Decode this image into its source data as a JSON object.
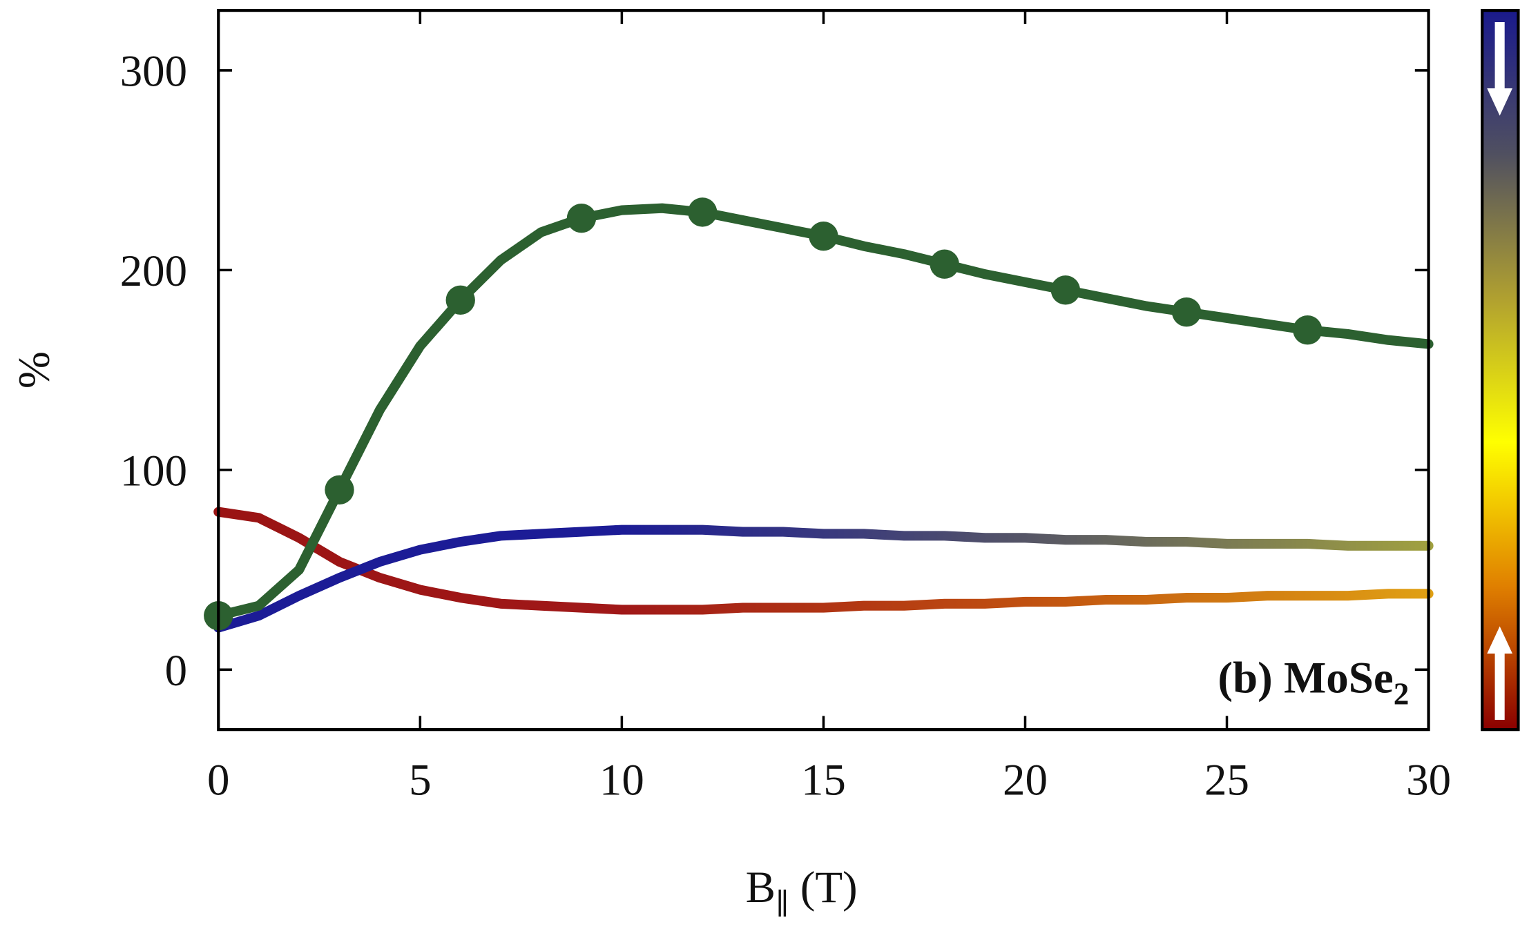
{
  "chart_data": {
    "type": "line",
    "xlabel": {
      "main": "B",
      "sub": "∥",
      "tail": " (T)"
    },
    "ylabel": "%",
    "annotation": {
      "text": "(b) MoSe",
      "sub": "2"
    },
    "xlim": [
      0,
      30
    ],
    "xticks": [
      0,
      5,
      10,
      15,
      20,
      25,
      30
    ],
    "ylim": [
      -30,
      330
    ],
    "yticks": [
      0,
      100,
      200,
      300
    ],
    "x": [
      0,
      1,
      2,
      3,
      4,
      5,
      6,
      7,
      8,
      9,
      10,
      11,
      12,
      13,
      14,
      15,
      16,
      17,
      18,
      19,
      20,
      21,
      22,
      23,
      24,
      25,
      26,
      27,
      28,
      29,
      30
    ],
    "series": [
      {
        "color": "#2c6030",
        "values": [
          27,
          32,
          50,
          90,
          130,
          162,
          185,
          205,
          219,
          226,
          230,
          231,
          229,
          225,
          221,
          217,
          212,
          208,
          203,
          198,
          194,
          190,
          186,
          182,
          179,
          176,
          173,
          170,
          168,
          165,
          163
        ]
      },
      {
        "color_stops": [
          "#1c1c96",
          "#1c1c96",
          "#555566",
          "#a0a040"
        ],
        "values": [
          21,
          27,
          37,
          46,
          54,
          60,
          64,
          67,
          68,
          69,
          70,
          70,
          70,
          69,
          69,
          68,
          68,
          67,
          67,
          66,
          66,
          65,
          65,
          64,
          64,
          63,
          63,
          63,
          62,
          62,
          62
        ]
      },
      {
        "color_stops": [
          "#9a1414",
          "#a01818",
          "#c05010",
          "#e0a014"
        ],
        "values": [
          79,
          76,
          66,
          54,
          46,
          40,
          36,
          33,
          32,
          31,
          30,
          30,
          30,
          31,
          31,
          31,
          32,
          32,
          33,
          33,
          34,
          34,
          35,
          35,
          36,
          36,
          37,
          37,
          37,
          38,
          38
        ]
      }
    ],
    "points": {
      "color": "#2c6030",
      "x": [
        0,
        3,
        6,
        9,
        12,
        15,
        18,
        21,
        24,
        27
      ],
      "values": [
        27,
        90,
        185,
        226,
        229,
        217,
        203,
        190,
        179,
        170
      ]
    },
    "colorbar": [
      "#1a1a8c",
      "#505060",
      "#b0a030",
      "#ffff00",
      "#e08000",
      "#8b0000"
    ]
  }
}
